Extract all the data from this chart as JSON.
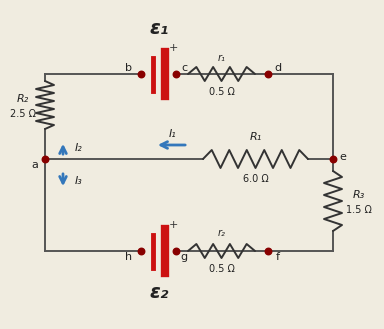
{
  "bg_color": "#f0ece0",
  "wire_color": "#555555",
  "dot_color": "#880000",
  "battery_color": "#cc1111",
  "arrow_color": "#3377bb",
  "resistor_color": "#333333",
  "epsilon1_label": "ε₁",
  "epsilon2_label": "ε₂",
  "R1_label": "R₁",
  "R1_val": "6.0 Ω",
  "R2_label": "R₂",
  "R2_val": "2.5 Ω",
  "R3_label": "R₃",
  "R3_val": "1.5 Ω",
  "r1_label": "r₁",
  "r1_val": "0.5 Ω",
  "r2_label": "r₂",
  "r2_val": "0.5 Ω",
  "I1_label": "I₁",
  "I2_label": "I₂",
  "I3_label": "I₃",
  "plus_sign": "+",
  "node_a": "a",
  "node_b": "b",
  "node_c": "c",
  "node_d": "d",
  "node_e": "e",
  "node_f": "f",
  "node_g": "g",
  "node_h": "h"
}
